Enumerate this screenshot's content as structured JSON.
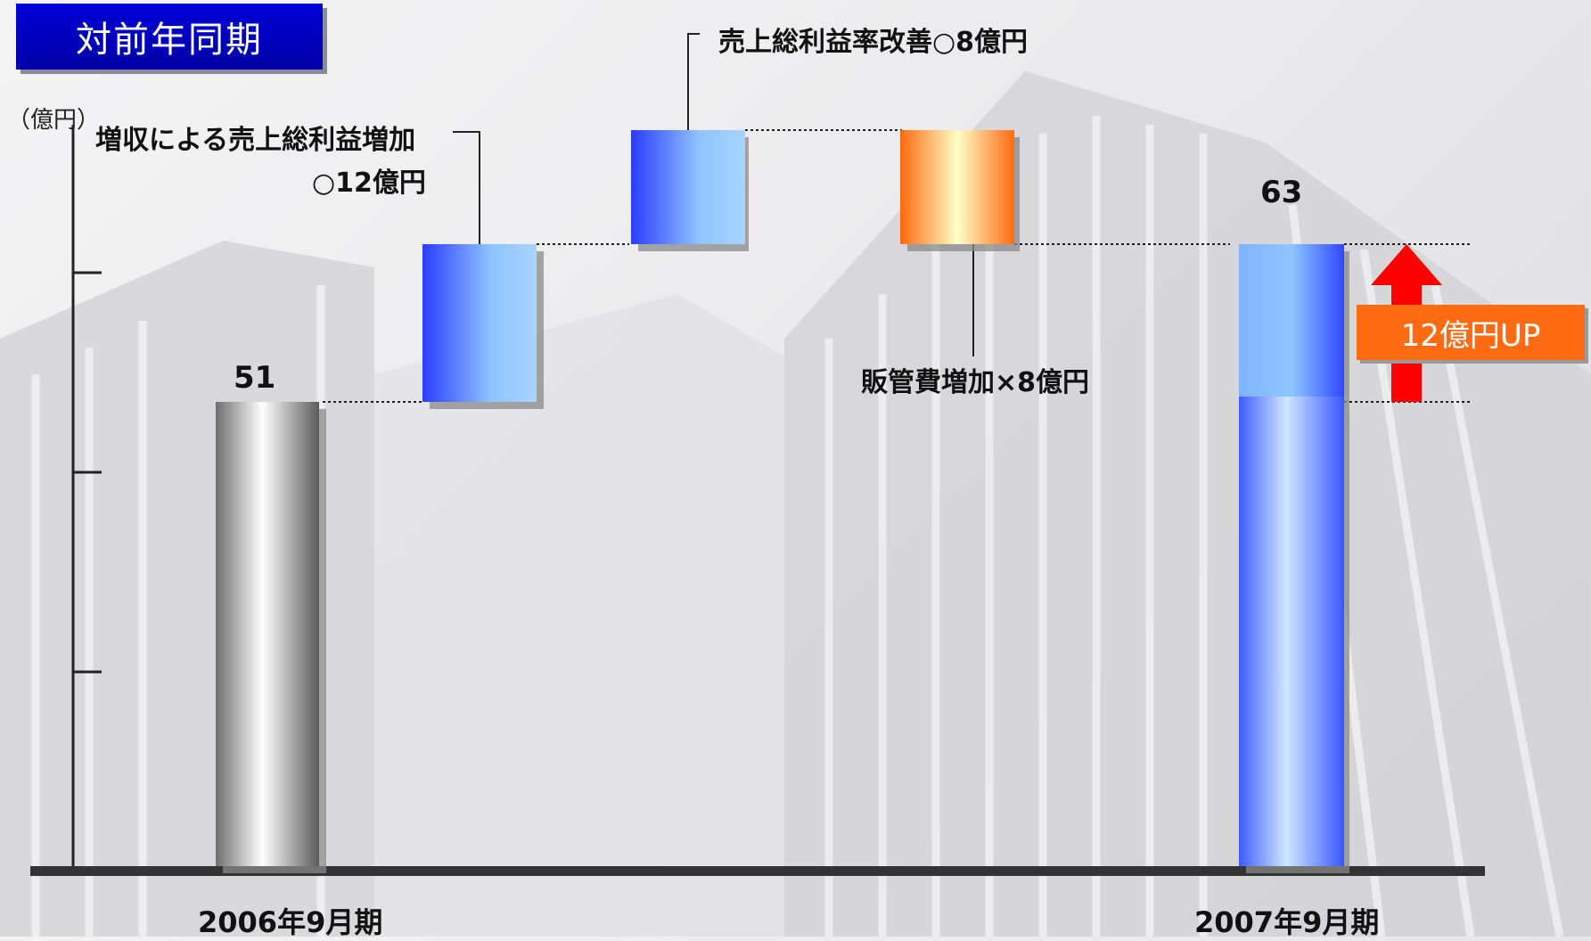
{
  "header": {
    "title": "対前年同期"
  },
  "annotations": {
    "unit": "（億円）",
    "gross_profit_increase_line1": "増収による売上総利益増加",
    "gross_profit_increase_line2": "○12億円",
    "margin_improvement": "売上総利益率改善○8億円",
    "sga_increase": "販管費増加×8億円",
    "up_badge": "12億円UP"
  },
  "colors": {
    "title_bg": "#0000c8",
    "bar_blue": "#3a55ff",
    "bar_light": "#a8d0ff",
    "bar_orange": "#ff7a20",
    "arrow_red": "#ff0000",
    "badge": "#ff6a12"
  },
  "chart_data": {
    "type": "bar",
    "subtype": "waterfall",
    "title": "対前年同期",
    "ylabel": "（億円）",
    "ylim": [
      0,
      80
    ],
    "categories": [
      "2006年9月期",
      "増収による売上総利益増加",
      "売上総利益率改善",
      "販管費増加",
      "2007年9月期"
    ],
    "steps": [
      {
        "label": "2006年9月期",
        "kind": "total",
        "value": 51,
        "value_label": "51"
      },
      {
        "label": "増収による売上総利益増加",
        "kind": "increase",
        "value": 12
      },
      {
        "label": "売上総利益率改善",
        "kind": "increase",
        "value": 8
      },
      {
        "label": "販管費増加",
        "kind": "decrease",
        "value": -8
      },
      {
        "label": "2007年9月期",
        "kind": "total",
        "value": 63,
        "value_label": "63"
      }
    ],
    "difference": {
      "from": 51,
      "to": 63,
      "label": "12億円UP"
    },
    "x_labels": [
      "2006年9月期",
      "2007年9月期"
    ]
  }
}
